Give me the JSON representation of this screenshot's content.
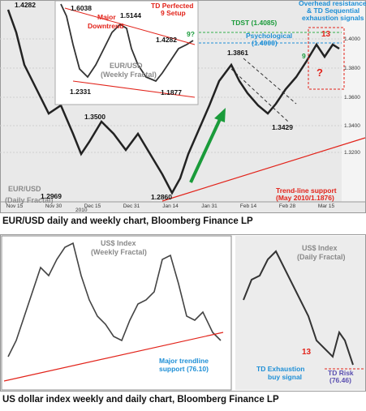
{
  "figures": [
    {
      "caption": "EUR/USD daily and weekly chart, Bloomberg Finance LP",
      "annotations": {
        "daily_high": "1.4282",
        "weekly_high": "1.6038",
        "major_downtrend": [
          "Major",
          "Downtrend"
        ],
        "weekly_peak": "1.5144",
        "td_perfected": [
          "TD Perfected",
          "9 Setup"
        ],
        "nine_question": "9?",
        "weekly_recent": "1.4282",
        "weekly_label": [
          "EUR/USD",
          "(Weekly Fractal)"
        ],
        "weekly_low1": "1.2331",
        "weekly_low2": "1.1877",
        "tdst": "TDST (1.4085)",
        "overhead": [
          "Overhead resistance",
          "& TD Sequential",
          "exhaustion signals"
        ],
        "psychological": [
          "Psychological",
          "(1.4000)"
        ],
        "nine": "9",
        "thirteen": "13",
        "question": "?",
        "high_1_3861": "1.3861",
        "level_1_3500": "1.3500",
        "low_1_3429": "1.3429",
        "daily_label": [
          "EUR/USD",
          "(Daily Fractal)"
        ],
        "low_1_2969": "1.2969",
        "low_1_2860": "1.2860",
        "trend_support": [
          "Trend-line support",
          "(May 2010/1.1876)"
        ]
      },
      "x_labels": [
        "Nov 15",
        "Nov 30",
        "Dec 15",
        "Dec 31",
        "Jan 14",
        "Jan 31",
        "Feb 14",
        "Feb 28",
        "Mar 15"
      ],
      "year_label": "2010",
      "y_labels": [
        "1.4000",
        "1.3800",
        "1.3600",
        "1.3400",
        "1.3200"
      ]
    },
    {
      "caption": "US dollar index weekly and daily chart, Bloomberg Finance LP",
      "annotations": {
        "weekly_label": [
          "US$ Index",
          "(Weekly Fractal)"
        ],
        "daily_label": [
          "US$ Index",
          "(Daily Fractal)"
        ],
        "major_support": [
          "Major trendline",
          "support (76.10)"
        ],
        "td_exhaustion": [
          "TD Exhaustion",
          "buy signal"
        ],
        "thirteen": "13",
        "td_risk": [
          "TD Risk",
          "(76.46)"
        ]
      }
    }
  ]
}
